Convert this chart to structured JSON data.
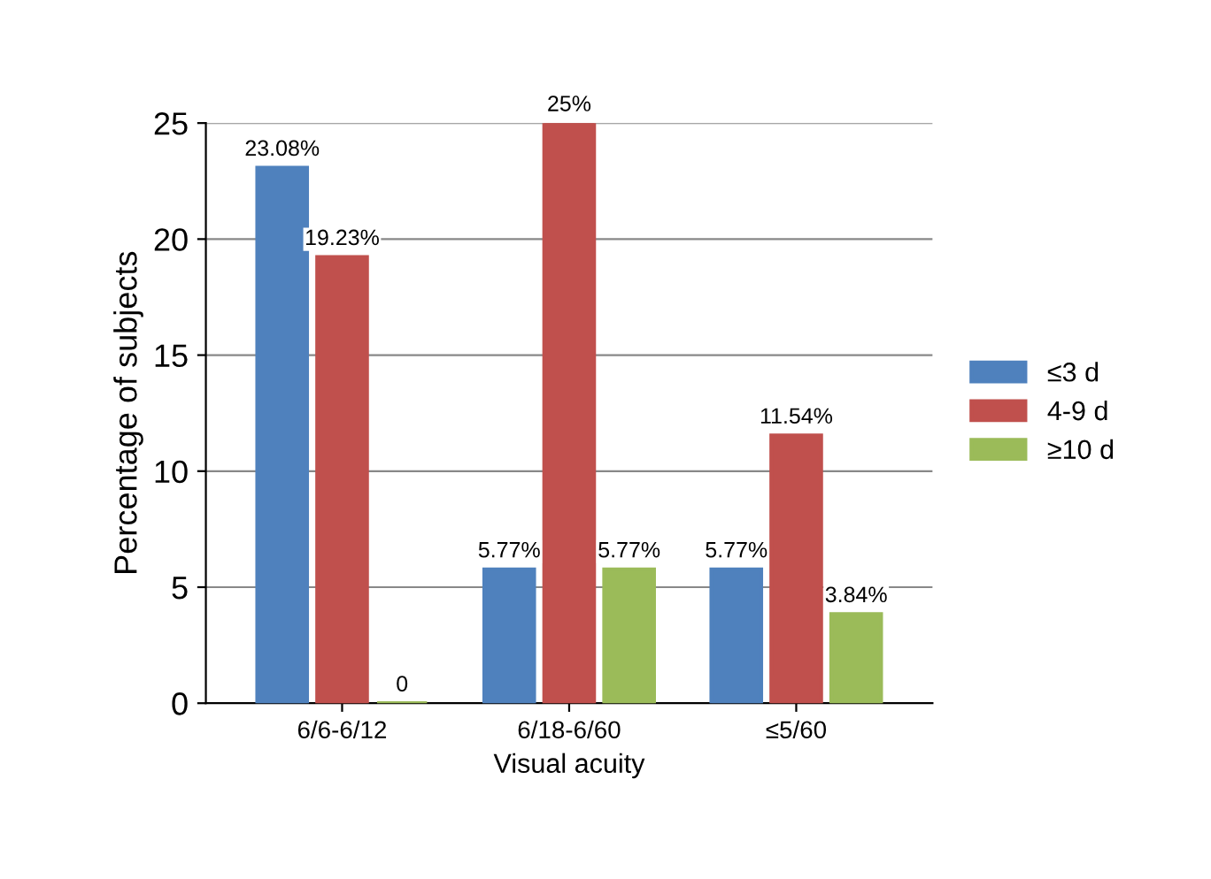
{
  "chart_data": {
    "type": "bar",
    "xlabel": "Visual acuity",
    "ylabel": "Percentage of subjects",
    "categories": [
      "6/6-6/12",
      "6/18-6/60",
      "≤5/60"
    ],
    "series": [
      {
        "name": "≤3 d",
        "color": "#4f81bd",
        "values": [
          23.08,
          5.77,
          5.77
        ],
        "value_labels": [
          "23.08%",
          "5.77%",
          "5.77%"
        ]
      },
      {
        "name": "4-9 d",
        "color": "#c0504d",
        "values": [
          19.23,
          25,
          11.54
        ],
        "value_labels": [
          "19.23%",
          "25%",
          "11.54%"
        ]
      },
      {
        "name": "≥10 d",
        "color": "#9bbb59",
        "values": [
          0,
          5.77,
          3.84
        ],
        "value_labels": [
          "0",
          "5.77%",
          "3.84%"
        ]
      }
    ],
    "ylim": [
      0,
      25
    ],
    "yticks": [
      0,
      5,
      10,
      15,
      20,
      25
    ],
    "grid": "y",
    "legend": "right"
  }
}
